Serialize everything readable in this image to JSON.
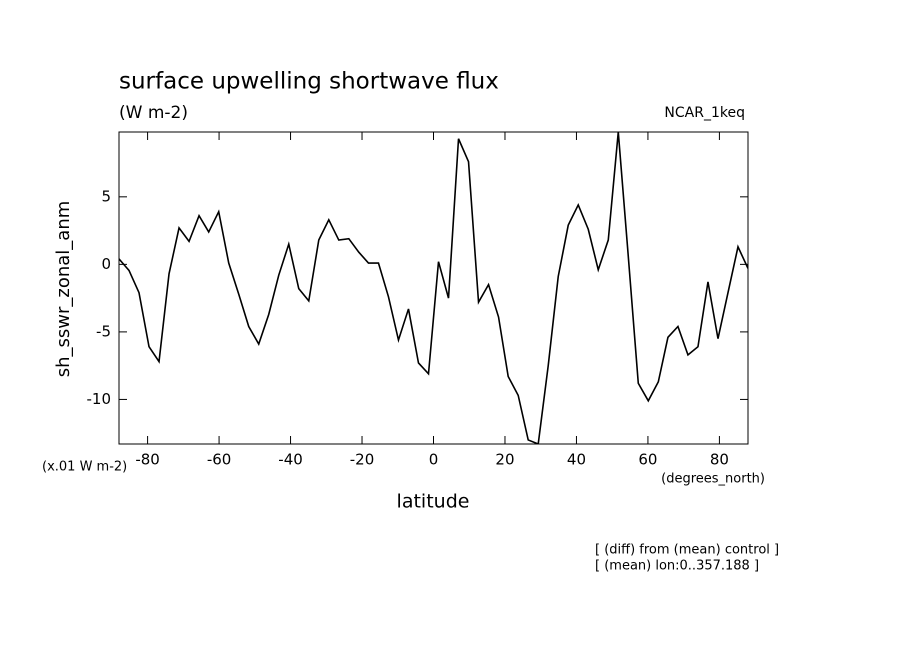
{
  "chart_data": {
    "type": "line",
    "title": "surface upwelling shortwave flux",
    "subtitle": "(W m-2)",
    "model": "NCAR_1keq",
    "y_label": "sh_sswr_zonal_anm",
    "x_label": "latitude",
    "y_units": "(x.01 W m-2)",
    "x_units": "(degrees_north)",
    "notes": [
      "[ (diff) from (mean) control ]",
      "[ (mean) lon:0..357.188 ]"
    ],
    "x": [
      -88.0,
      -85.2,
      -82.4,
      -79.6,
      -76.8,
      -74.0,
      -71.2,
      -68.4,
      -65.6,
      -62.9,
      -60.1,
      -57.3,
      -54.5,
      -51.7,
      -48.9,
      -46.1,
      -43.3,
      -40.5,
      -37.7,
      -34.9,
      -32.1,
      -29.3,
      -26.5,
      -23.7,
      -20.9,
      -18.2,
      -15.4,
      -12.6,
      -9.8,
      -7.0,
      -4.2,
      -1.4,
      1.4,
      4.2,
      7.0,
      9.8,
      12.6,
      15.4,
      18.2,
      20.9,
      23.7,
      26.5,
      29.3,
      32.1,
      34.9,
      37.7,
      40.5,
      43.3,
      46.1,
      48.9,
      51.7,
      54.5,
      57.3,
      60.1,
      62.9,
      65.6,
      68.4,
      71.2,
      74.0,
      76.8,
      79.6,
      82.4,
      85.2,
      88.0
    ],
    "series": [
      {
        "color": "#000000",
        "values": [
          0.4,
          -0.45,
          -2.1,
          -6.1,
          -7.2,
          -0.7,
          2.7,
          1.7,
          3.6,
          2.4,
          3.9,
          0.1,
          -2.2,
          -4.6,
          -5.9,
          -3.7,
          -0.8,
          1.5,
          -1.8,
          -2.7,
          1.8,
          3.3,
          1.8,
          1.9,
          0.9,
          0.1,
          0.1,
          -2.4,
          -5.6,
          -3.3,
          -7.3,
          -8.1,
          0.2,
          -2.5,
          9.3,
          7.6,
          -2.8,
          -1.5,
          -3.9,
          -8.3,
          -9.7,
          -13,
          -13.3,
          -7.5,
          -0.9,
          2.9,
          4.4,
          2.6,
          -0.4,
          1.8,
          9.8,
          0.6,
          -8.8,
          -10.1,
          -8.7,
          -5.4,
          -4.6,
          -6.7,
          -6.1,
          -1.3,
          -5.5,
          -2.1,
          1.3,
          -0.3
        ]
      }
    ],
    "xlim": [
      -88,
      88
    ],
    "xticks": [
      -80,
      -60,
      -40,
      -20,
      0,
      20,
      40,
      60,
      80
    ],
    "ylim": [
      -13.3,
      9.8
    ],
    "yticks": [
      -10,
      -5,
      0,
      5
    ],
    "grid": false
  }
}
